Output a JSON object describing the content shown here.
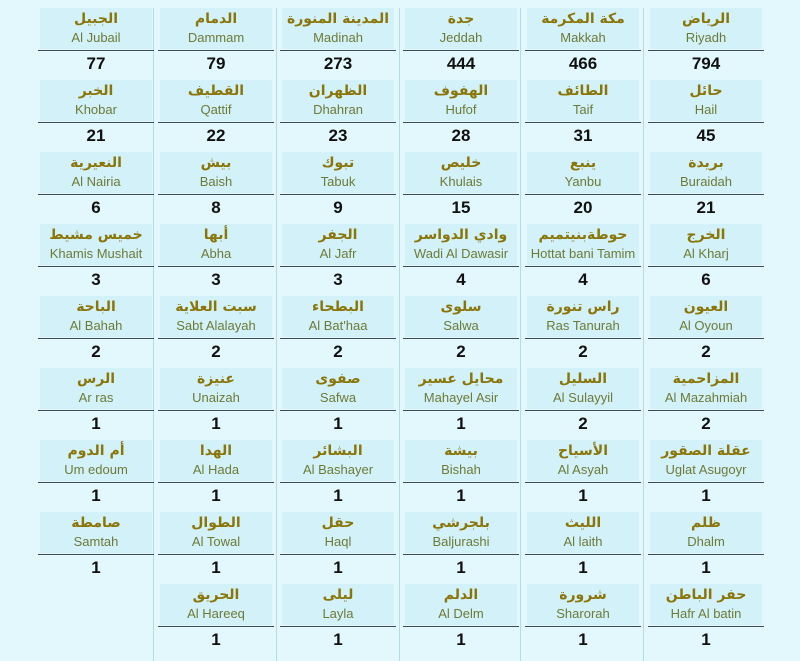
{
  "colors": {
    "background": "#e2f8fc",
    "cell": "#d3f1f9",
    "arabic": "#8a7508",
    "english": "#6d7a36"
  },
  "columns": [
    {
      "cities": [
        {
          "ar": "الجبيل",
          "en": "Al Jubail",
          "count": "77"
        },
        {
          "ar": "الخبر",
          "en": "Khobar",
          "count": "21"
        },
        {
          "ar": "النعيرية",
          "en": "Al Nairia",
          "count": "6"
        },
        {
          "ar": "خميس مشيط",
          "en": "Khamis Mushait",
          "count": "3"
        },
        {
          "ar": "الباحة",
          "en": "Al Bahah",
          "count": "2"
        },
        {
          "ar": "الرس",
          "en": "Ar ras",
          "count": "1"
        },
        {
          "ar": "أم الدوم",
          "en": "Um edoum",
          "count": "1"
        },
        {
          "ar": "صامطة",
          "en": "Samtah",
          "count": "1"
        }
      ]
    },
    {
      "cities": [
        {
          "ar": "الدمام",
          "en": "Dammam",
          "count": "79"
        },
        {
          "ar": "القطيف",
          "en": "Qattif",
          "count": "22"
        },
        {
          "ar": "بيش",
          "en": "Baish",
          "count": "8"
        },
        {
          "ar": "أبها",
          "en": "Abha",
          "count": "3"
        },
        {
          "ar": "سبت العلاية",
          "en": "Sabt Alalayah",
          "count": "2"
        },
        {
          "ar": "عنيزة",
          "en": "Unaizah",
          "count": "1"
        },
        {
          "ar": "الهدا",
          "en": "Al Hada",
          "count": "1"
        },
        {
          "ar": "الطوال",
          "en": "Al Towal",
          "count": "1"
        },
        {
          "ar": "الحريق",
          "en": "Al Hareeq",
          "count": "1"
        }
      ]
    },
    {
      "cities": [
        {
          "ar": "المدينة المنورة",
          "en": "Madinah",
          "count": "273"
        },
        {
          "ar": "الظهران",
          "en": "Dhahran",
          "count": "23"
        },
        {
          "ar": "تبوك",
          "en": "Tabuk",
          "count": "9"
        },
        {
          "ar": "الجفر",
          "en": "Al Jafr",
          "count": "3"
        },
        {
          "ar": "البطحاء",
          "en": "Al Bat'haa",
          "count": "2"
        },
        {
          "ar": "صفوى",
          "en": "Safwa",
          "count": "1"
        },
        {
          "ar": "البشائر",
          "en": "Al Bashayer",
          "count": "1"
        },
        {
          "ar": "حقل",
          "en": "Haql",
          "count": "1"
        },
        {
          "ar": "ليلى",
          "en": "Layla",
          "count": "1"
        }
      ]
    },
    {
      "cities": [
        {
          "ar": "جدة",
          "en": "Jeddah",
          "count": "444"
        },
        {
          "ar": "الهفوف",
          "en": "Hufof",
          "count": "28"
        },
        {
          "ar": "خليص",
          "en": "Khulais",
          "count": "15"
        },
        {
          "ar": "وادي الدواسر",
          "en": "Wadi Al Dawasir",
          "count": "4"
        },
        {
          "ar": "سلوى",
          "en": "Salwa",
          "count": "2"
        },
        {
          "ar": "محايل عسير",
          "en": "Mahayel Asir",
          "count": "1"
        },
        {
          "ar": "بيشة",
          "en": "Bishah",
          "count": "1"
        },
        {
          "ar": "بلجرشي",
          "en": "Baljurashi",
          "count": "1"
        },
        {
          "ar": "الدلم",
          "en": "Al Delm",
          "count": "1"
        }
      ]
    },
    {
      "cities": [
        {
          "ar": "مكة المكرمة",
          "en": "Makkah",
          "count": "466"
        },
        {
          "ar": "الطائف",
          "en": "Taif",
          "count": "31"
        },
        {
          "ar": "ينبع",
          "en": "Yanbu",
          "count": "20"
        },
        {
          "ar": "حوطةبنيتميم",
          "en": "Hottat bani Tamim",
          "count": "4"
        },
        {
          "ar": "راس تنورة",
          "en": "Ras Tanurah",
          "count": "2"
        },
        {
          "ar": "السليل",
          "en": "Al Sulayyil",
          "count": "2"
        },
        {
          "ar": "الأسياح",
          "en": "Al Asyah",
          "count": "1"
        },
        {
          "ar": "الليث",
          "en": "Al laith",
          "count": "1"
        },
        {
          "ar": "شرورة",
          "en": "Sharorah",
          "count": "1"
        }
      ]
    },
    {
      "cities": [
        {
          "ar": "الرياض",
          "en": "Riyadh",
          "count": "794"
        },
        {
          "ar": "حائل",
          "en": "Hail",
          "count": "45"
        },
        {
          "ar": "بريدة",
          "en": "Buraidah",
          "count": "21"
        },
        {
          "ar": "الخرج",
          "en": "Al Kharj",
          "count": "6"
        },
        {
          "ar": "العيون",
          "en": "Al Oyoun",
          "count": "2"
        },
        {
          "ar": "المزاحمية",
          "en": "Al Mazahmiah",
          "count": "2"
        },
        {
          "ar": "عقلة الصقور",
          "en": "Uglat Asugoyr",
          "count": "1"
        },
        {
          "ar": "ظلم",
          "en": "Dhalm",
          "count": "1"
        },
        {
          "ar": "حفر الباطن",
          "en": "Hafr Al batin",
          "count": "1"
        }
      ]
    }
  ]
}
